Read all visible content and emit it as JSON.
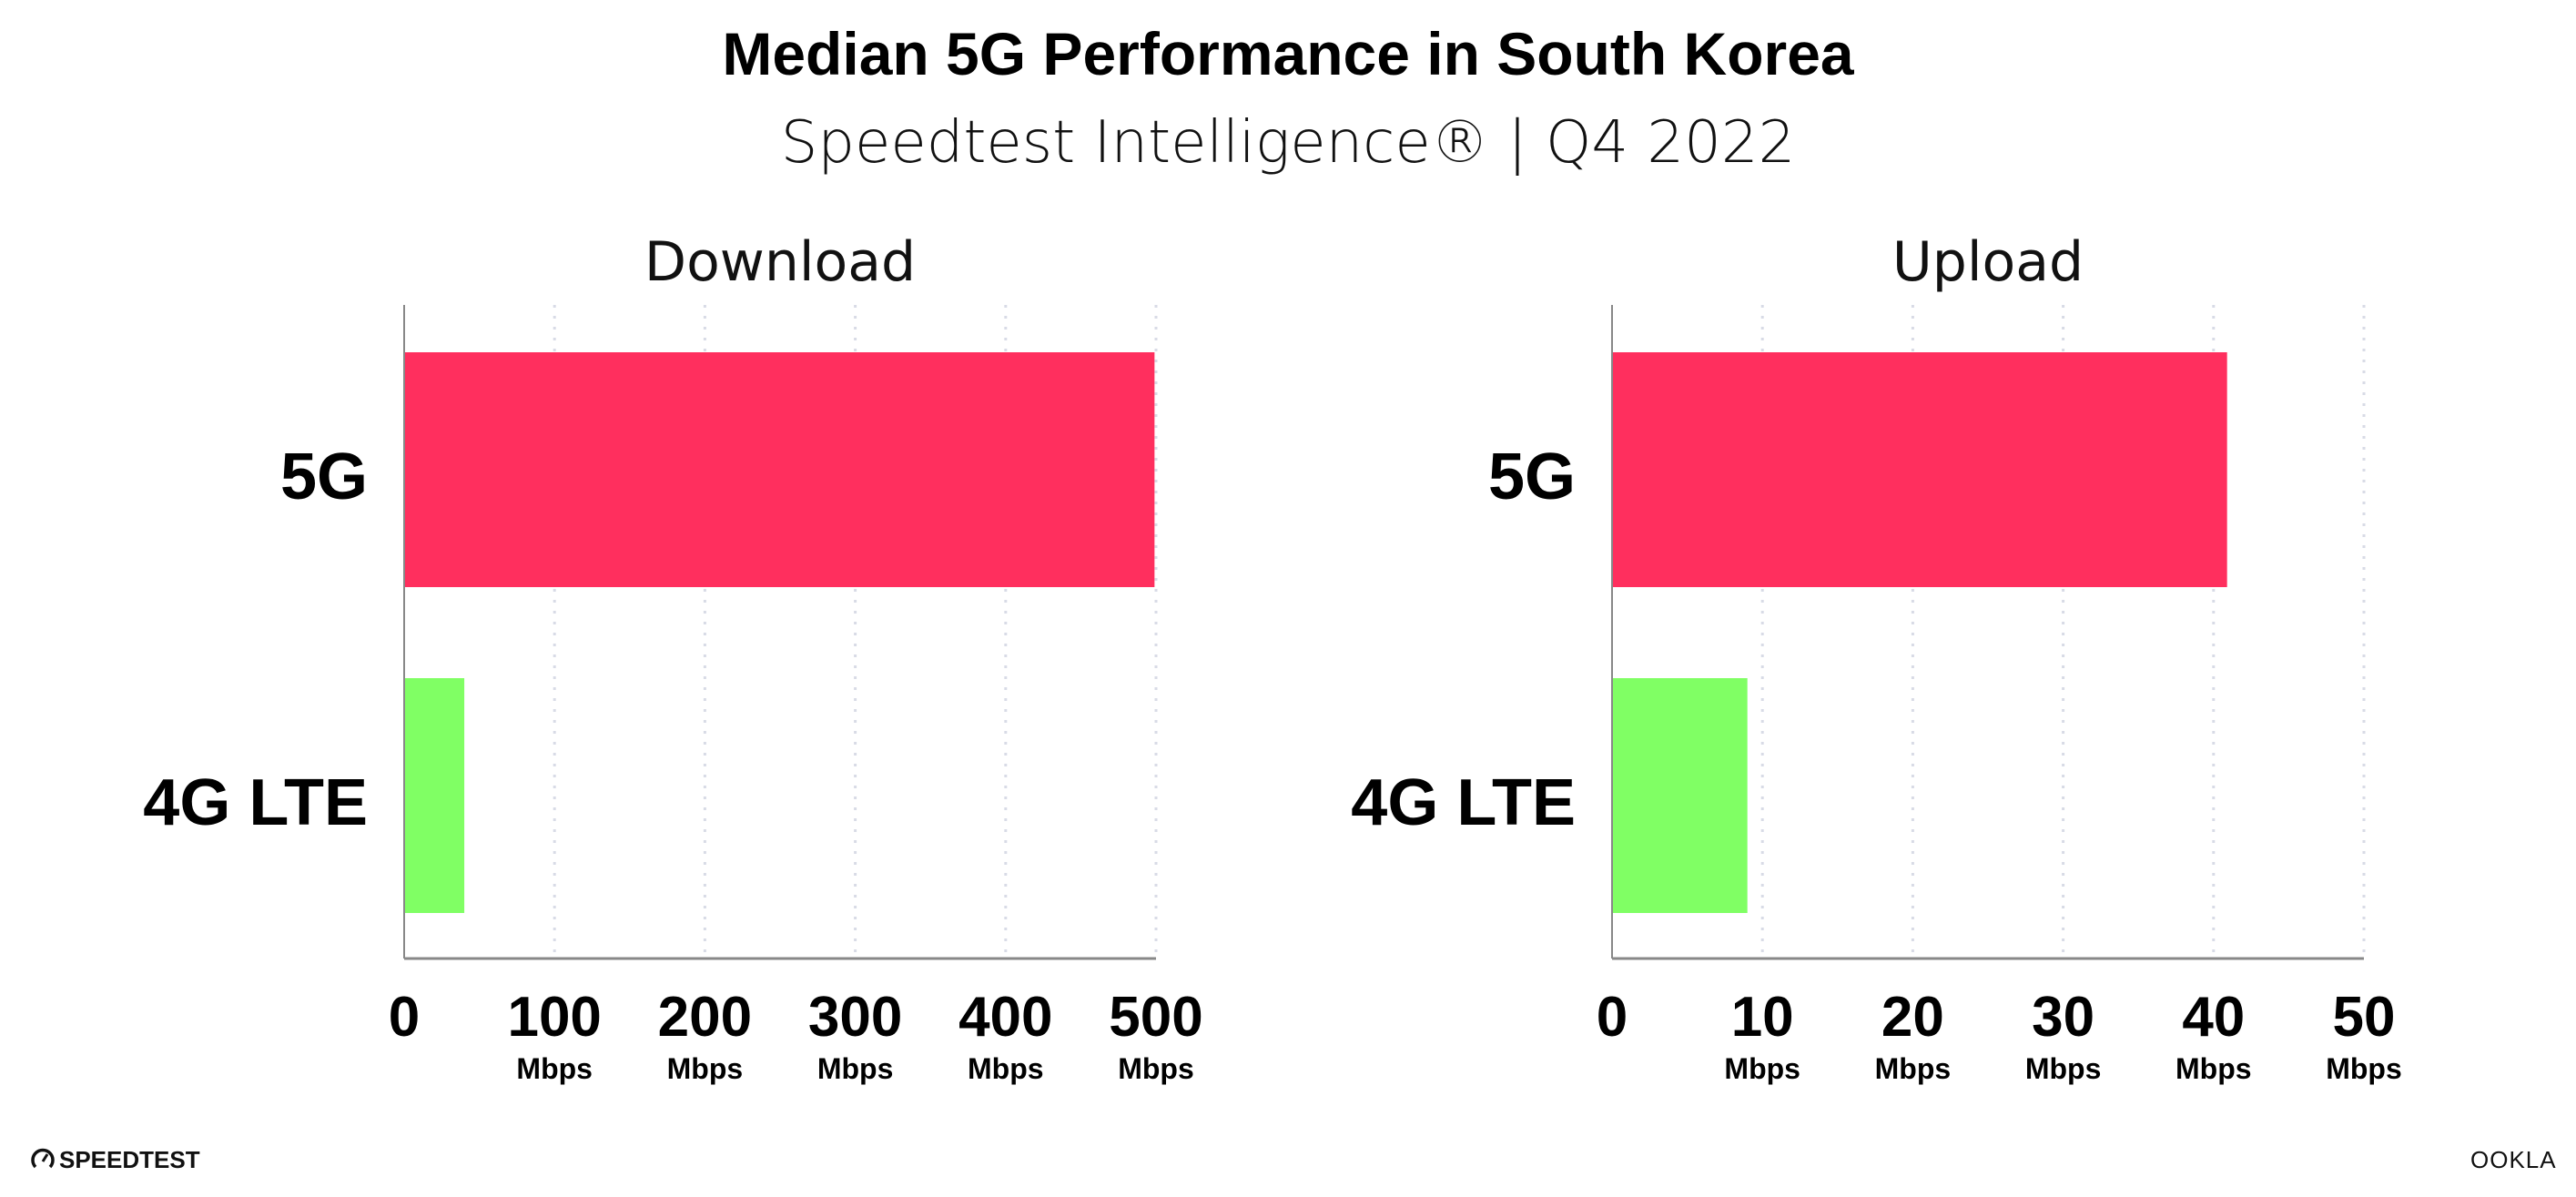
{
  "title": "Median 5G Performance in South Korea",
  "subtitle": "Speedtest Intelligence® | Q4 2022",
  "footer": {
    "left_logo": "SPEEDTEST",
    "right_logo": "OOKLA"
  },
  "colors": {
    "5G": "#ff2f5e",
    "4G LTE": "#80ff64",
    "grid": "#d8dbe6",
    "axis": "#888888"
  },
  "chart_data": [
    {
      "type": "bar",
      "orientation": "horizontal",
      "title": "Download",
      "categories": [
        "5G",
        "4G LTE"
      ],
      "values": [
        499,
        40
      ],
      "unit": "Mbps",
      "xlim": [
        0,
        500
      ],
      "ticks": [
        0,
        100,
        200,
        300,
        400,
        500
      ],
      "tick_labels": [
        "0",
        "100",
        "200",
        "300",
        "400",
        "500"
      ],
      "grid": "vertical dotted"
    },
    {
      "type": "bar",
      "orientation": "horizontal",
      "title": "Upload",
      "categories": [
        "5G",
        "4G LTE"
      ],
      "values": [
        40.9,
        9.0
      ],
      "unit": "Mbps",
      "xlim": [
        0,
        50
      ],
      "ticks": [
        0,
        10,
        20,
        30,
        40,
        50
      ],
      "tick_labels": [
        "0",
        "10",
        "20",
        "30",
        "40",
        "50"
      ],
      "grid": "vertical dotted"
    }
  ]
}
